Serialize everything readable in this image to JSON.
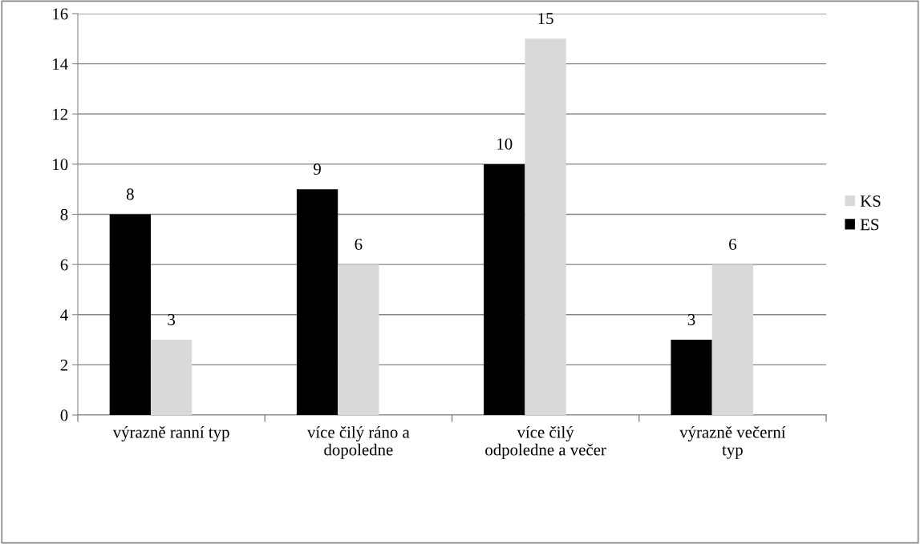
{
  "chart_data": {
    "type": "bar",
    "categories": [
      "výrazně ranní typ",
      "více čilý ráno a dopoledne",
      "více čilý odpoledne a večer",
      "výrazně večerní typ"
    ],
    "series": [
      {
        "name": "ES",
        "color": "#000000",
        "values": [
          8,
          9,
          10,
          3
        ]
      },
      {
        "name": "KS",
        "color": "#d9d9d9",
        "values": [
          3,
          6,
          15,
          6
        ]
      }
    ],
    "ylim": [
      0,
      16
    ],
    "yticks": [
      0,
      2,
      4,
      6,
      8,
      10,
      12,
      14,
      16
    ],
    "grid": "y",
    "legend": "right",
    "data_labels": true
  }
}
